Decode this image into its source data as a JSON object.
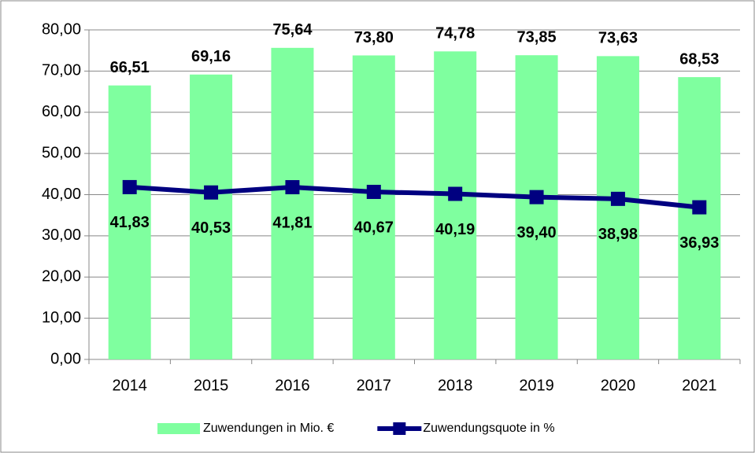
{
  "chart_data": {
    "type": "bar",
    "categories": [
      "2014",
      "2015",
      "2016",
      "2017",
      "2018",
      "2019",
      "2020",
      "2021"
    ],
    "series": [
      {
        "name": "Zuwendungen in Mio. €",
        "type": "bar",
        "color": "#7fff9f",
        "values": [
          66.51,
          69.16,
          75.64,
          73.8,
          74.78,
          73.85,
          73.63,
          68.53
        ],
        "value_labels": [
          "66,51",
          "69,16",
          "75,64",
          "73,80",
          "74,78",
          "73,85",
          "73,63",
          "68,53"
        ]
      },
      {
        "name": "Zuwendungsquote in %",
        "type": "line",
        "color": "#000080",
        "values": [
          41.83,
          40.53,
          41.81,
          40.67,
          40.19,
          39.4,
          38.98,
          36.93
        ],
        "value_labels": [
          "41,83",
          "40,53",
          "41,81",
          "40,67",
          "40,19",
          "39,40",
          "38,98",
          "36,93"
        ]
      }
    ],
    "ylim": [
      0,
      80
    ],
    "yticks": [
      {
        "value": 0,
        "label": "0,00"
      },
      {
        "value": 10,
        "label": "10,00"
      },
      {
        "value": 20,
        "label": "20,00"
      },
      {
        "value": 30,
        "label": "30,00"
      },
      {
        "value": 40,
        "label": "40,00"
      },
      {
        "value": 50,
        "label": "50,00"
      },
      {
        "value": 60,
        "label": "60,00"
      },
      {
        "value": 70,
        "label": "70,00"
      },
      {
        "value": 80,
        "label": "80,00"
      }
    ],
    "grid": true,
    "legend": "bottom"
  }
}
